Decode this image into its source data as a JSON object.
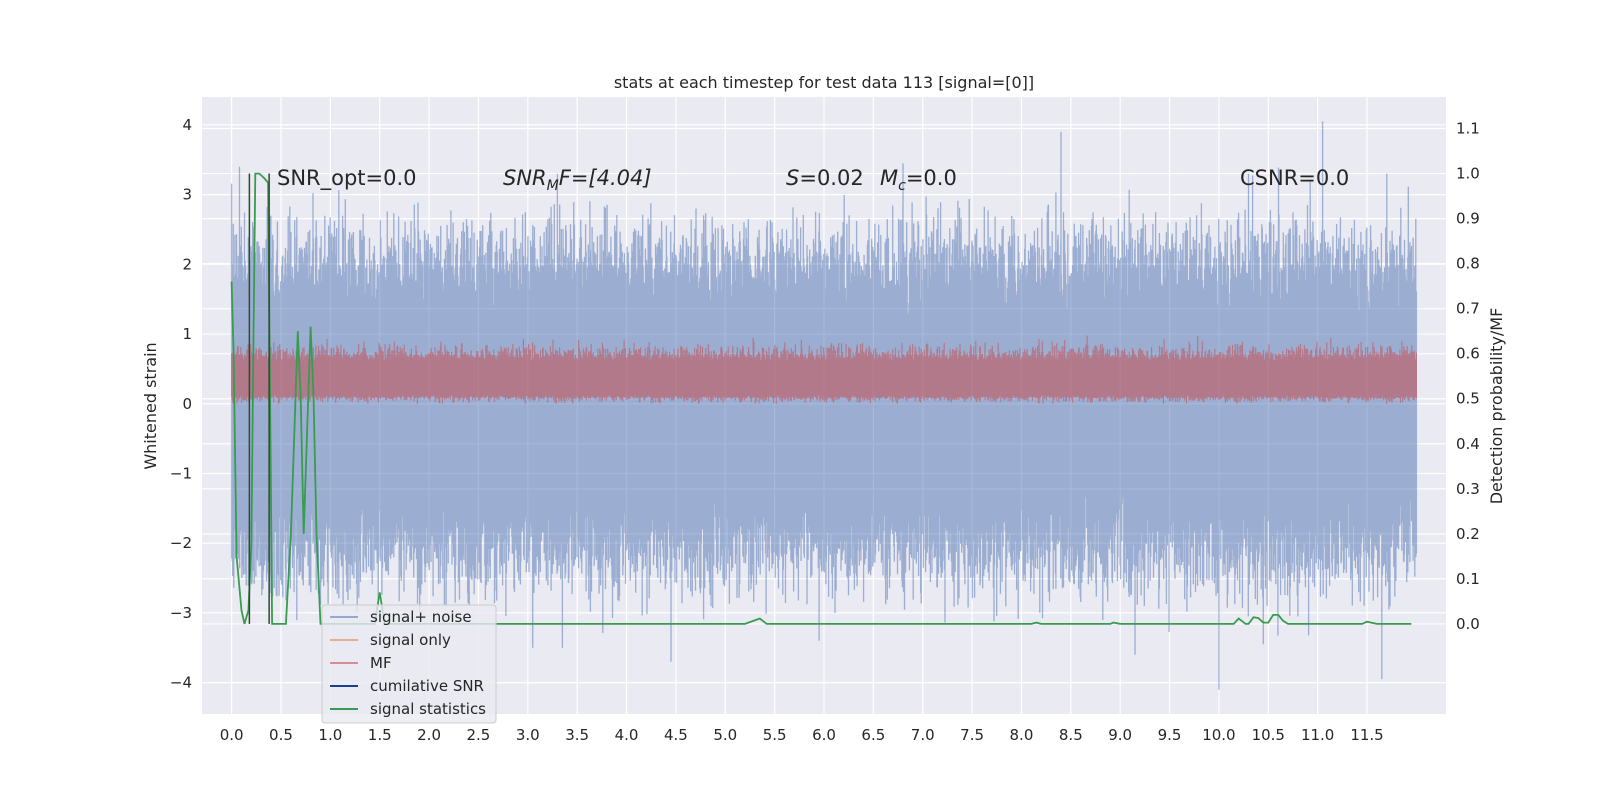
{
  "chart_data": {
    "type": "line",
    "title": "stats at each timestep for test data 113 [signal=[0]]",
    "ylabel": "Whitened strain",
    "ylabel_right": "Detection probability/MF",
    "xlim": [
      -0.3,
      12.3
    ],
    "ylim": [
      -4.45,
      4.4
    ],
    "ylim_right": [
      -0.2,
      1.17
    ],
    "x_ticks": [
      0.0,
      0.5,
      1.0,
      1.5,
      2.0,
      2.5,
      3.0,
      3.5,
      4.0,
      4.5,
      5.0,
      5.5,
      6.0,
      6.5,
      7.0,
      7.5,
      8.0,
      8.5,
      9.0,
      9.5,
      10.0,
      10.5,
      11.0,
      11.5
    ],
    "x_tick_labels": [
      "0.0",
      "0.5",
      "1.0",
      "1.5",
      "2.0",
      "2.5",
      "3.0",
      "3.5",
      "4.0",
      "4.5",
      "5.0",
      "5.5",
      "6.0",
      "6.5",
      "7.0",
      "7.5",
      "8.0",
      "8.5",
      "9.0",
      "9.5",
      "10.0",
      "10.5",
      "11.0",
      "11.5"
    ],
    "y_ticks": [
      4,
      3,
      2,
      1,
      0,
      -1,
      -2,
      -3,
      -4
    ],
    "y_tick_labels": [
      "4",
      "3",
      "2",
      "1",
      "0",
      "−1",
      "−2",
      "−3",
      "−4"
    ],
    "y_ticks_right": [
      1.1,
      1.0,
      0.9,
      0.8,
      0.7,
      0.6,
      0.5,
      0.4,
      0.3,
      0.2,
      0.1,
      0.0
    ],
    "y_tick_labels_right": [
      "1.1",
      "1.0",
      "0.9",
      "0.8",
      "0.7",
      "0.6",
      "0.5",
      "0.4",
      "0.3",
      "0.2",
      "0.1",
      "0.0"
    ],
    "grid": true,
    "legend_position": "lower-left",
    "annotations": {
      "snr_opt": "SNR_opt=0.0",
      "snr_mf_base": "SNR",
      "snr_mf_sub": "M",
      "snr_mf_rest": "F=[4.04]",
      "s_label": "S",
      "s_value": "=0.02",
      "mc_label": "M",
      "mc_sub": "c",
      "mc_value": "=0.0",
      "csnr": "CSNR=0.0"
    },
    "legend": [
      {
        "label": "signal+ noise",
        "color": "#4c72b0"
      },
      {
        "label": "signal only",
        "color": "#dd8452"
      },
      {
        "label": "MF",
        "color": "#c44e52"
      },
      {
        "label": "cumilative SNR",
        "color": "#1f3f8f"
      },
      {
        "label": "signal statistics",
        "color": "#3a9a4f"
      }
    ],
    "series": [
      {
        "name": "signal+ noise",
        "axis": "left",
        "color": "#4c72b0",
        "x_range": [
          0.0,
          12.0
        ],
        "band_main": [
          -1.95,
          1.9
        ],
        "band_extreme": [
          -4.1,
          4.05
        ],
        "peaks": [
          [
            8.4,
            3.9
          ],
          [
            11.05,
            4.05
          ],
          [
            0.08,
            3.4
          ],
          [
            3.3,
            3.3
          ],
          [
            6.8,
            3.45
          ],
          [
            10.3,
            3.3
          ],
          [
            11.7,
            3.3
          ],
          [
            10.0,
            -4.1
          ],
          [
            11.65,
            -3.95
          ],
          [
            4.45,
            -3.7
          ],
          [
            9.15,
            -3.6
          ],
          [
            3.05,
            -3.5
          ],
          [
            3.35,
            -3.5
          ],
          [
            5.95,
            -3.4
          ],
          [
            10.45,
            -3.45
          ]
        ]
      },
      {
        "name": "MF",
        "axis": "left",
        "color": "#c44e52",
        "x_range": [
          0.0,
          12.0
        ],
        "band": [
          0.0,
          1.0
        ]
      },
      {
        "name": "signal statistics",
        "axis": "right",
        "color": "#3a9a4f",
        "points": [
          [
            0.0,
            0.76
          ],
          [
            0.02,
            0.6
          ],
          [
            0.05,
            0.15
          ],
          [
            0.1,
            0.03
          ],
          [
            0.13,
            0.0
          ],
          [
            0.17,
            0.03
          ],
          [
            0.2,
            0.18
          ],
          [
            0.22,
            0.6
          ],
          [
            0.24,
            1.0
          ],
          [
            0.28,
            1.0
          ],
          [
            0.33,
            0.99
          ],
          [
            0.37,
            0.98
          ],
          [
            0.39,
            0.5
          ],
          [
            0.41,
            0.0
          ],
          [
            0.5,
            0.0
          ],
          [
            0.55,
            0.0
          ],
          [
            0.6,
            0.2
          ],
          [
            0.67,
            0.65
          ],
          [
            0.7,
            0.5
          ],
          [
            0.73,
            0.2
          ],
          [
            0.8,
            0.66
          ],
          [
            0.83,
            0.5
          ],
          [
            0.86,
            0.2
          ],
          [
            0.9,
            0.0
          ],
          [
            1.0,
            0.0
          ],
          [
            1.45,
            0.0
          ],
          [
            1.5,
            0.07
          ],
          [
            1.55,
            0.0
          ],
          [
            5.2,
            0.0
          ],
          [
            5.35,
            0.012
          ],
          [
            5.42,
            0.0
          ],
          [
            8.1,
            0.0
          ],
          [
            8.15,
            0.003
          ],
          [
            8.2,
            0.0
          ],
          [
            8.9,
            0.0
          ],
          [
            8.93,
            0.003
          ],
          [
            9.0,
            0.0
          ],
          [
            10.15,
            0.0
          ],
          [
            10.2,
            0.012
          ],
          [
            10.27,
            0.0
          ],
          [
            10.3,
            0.0
          ],
          [
            10.35,
            0.015
          ],
          [
            10.4,
            0.013
          ],
          [
            10.45,
            0.003
          ],
          [
            10.5,
            0.003
          ],
          [
            10.55,
            0.02
          ],
          [
            10.6,
            0.02
          ],
          [
            10.65,
            0.007
          ],
          [
            10.7,
            0.0
          ],
          [
            11.3,
            0.0
          ],
          [
            11.45,
            0.0
          ],
          [
            11.5,
            0.005
          ],
          [
            11.6,
            0.0
          ],
          [
            11.95,
            0.0
          ]
        ]
      },
      {
        "name": "cumilative SNR",
        "axis": "right",
        "color": "#1f3f8f",
        "points": []
      }
    ]
  }
}
